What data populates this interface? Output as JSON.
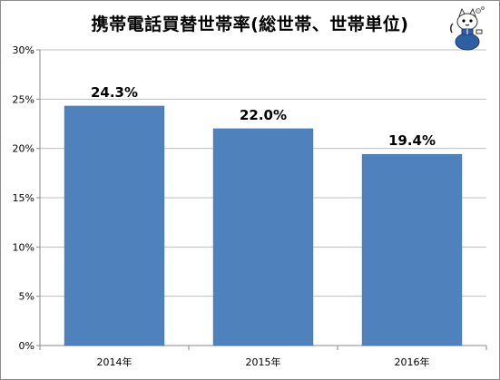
{
  "colors": {
    "bar": "#4f81bd",
    "bar_stroke": "#3f6fa8",
    "axis": "#888888",
    "grid": "#bfbfbf",
    "frame": "#8c8c8c",
    "text": "#000000"
  },
  "icons": {
    "mascot": "cat-mascot-icon"
  },
  "chart_data": {
    "type": "bar",
    "title": "携帯電話買替世帯率(総世帯、世帯単位)",
    "categories": [
      "2014年",
      "2015年",
      "2016年"
    ],
    "values": [
      24.3,
      22.0,
      19.4
    ],
    "data_labels": [
      "24.3%",
      "22.0%",
      "19.4%"
    ],
    "xlabel": "",
    "ylabel": "",
    "ylim": [
      0,
      30
    ],
    "yticks": [
      0,
      5,
      10,
      15,
      20,
      25,
      30
    ],
    "ytick_labels": [
      "0%",
      "5%",
      "10%",
      "15%",
      "20%",
      "25%",
      "30%"
    ],
    "grid": true,
    "legend": "none"
  }
}
